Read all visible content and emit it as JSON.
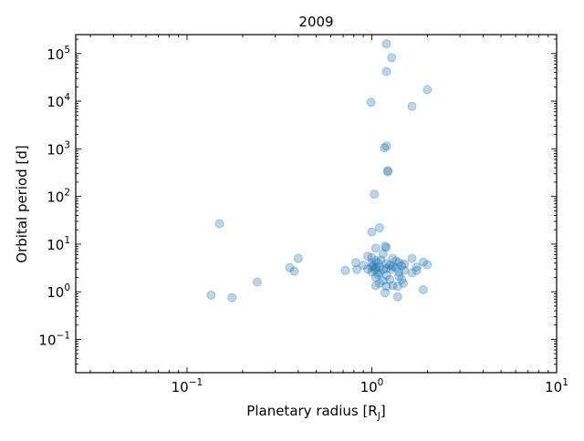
{
  "chart_data": {
    "type": "scatter",
    "title": "2009",
    "xlabel": "Planetary radius [R",
    "xlabel_sub": "J",
    "xlabel_end": "]",
    "ylabel": "Orbital period [d]",
    "xscale": "log",
    "yscale": "log",
    "xlim": [
      0.025,
      10
    ],
    "ylim": [
      0.02,
      250000
    ],
    "x_ticks": [
      {
        "base": "10",
        "exp": "−1",
        "value": 0.1
      },
      {
        "base": "10",
        "exp": "0",
        "value": 1
      },
      {
        "base": "10",
        "exp": "1",
        "value": 10
      }
    ],
    "y_ticks": [
      {
        "base": "10",
        "exp": "−1",
        "value": 0.1
      },
      {
        "base": "10",
        "exp": "0",
        "value": 1
      },
      {
        "base": "10",
        "exp": "1",
        "value": 10
      },
      {
        "base": "10",
        "exp": "2",
        "value": 100
      },
      {
        "base": "10",
        "exp": "3",
        "value": 1000
      },
      {
        "base": "10",
        "exp": "4",
        "value": 10000
      },
      {
        "base": "10",
        "exp": "5",
        "value": 100000
      }
    ],
    "grid": false,
    "marker_color": "#1f77b4",
    "marker_alpha": 0.3,
    "points": [
      {
        "x": 1.2,
        "y": 160000
      },
      {
        "x": 1.28,
        "y": 82000
      },
      {
        "x": 1.2,
        "y": 42000
      },
      {
        "x": 2.0,
        "y": 17500
      },
      {
        "x": 0.99,
        "y": 9500
      },
      {
        "x": 1.65,
        "y": 7800
      },
      {
        "x": 1.2,
        "y": 1150
      },
      {
        "x": 1.17,
        "y": 1050
      },
      {
        "x": 1.22,
        "y": 350
      },
      {
        "x": 1.22,
        "y": 330
      },
      {
        "x": 1.03,
        "y": 112
      },
      {
        "x": 0.15,
        "y": 27
      },
      {
        "x": 1.1,
        "y": 22
      },
      {
        "x": 1.0,
        "y": 18
      },
      {
        "x": 1.18,
        "y": 9
      },
      {
        "x": 1.2,
        "y": 8.5
      },
      {
        "x": 1.05,
        "y": 8.2
      },
      {
        "x": 1.15,
        "y": 6.2
      },
      {
        "x": 0.95,
        "y": 5.6
      },
      {
        "x": 1.0,
        "y": 5.2
      },
      {
        "x": 1.3,
        "y": 5.0
      },
      {
        "x": 1.65,
        "y": 5.0
      },
      {
        "x": 0.4,
        "y": 5.0
      },
      {
        "x": 1.05,
        "y": 4.5
      },
      {
        "x": 1.12,
        "y": 4.6
      },
      {
        "x": 1.35,
        "y": 4.4
      },
      {
        "x": 1.4,
        "y": 4.1
      },
      {
        "x": 1.9,
        "y": 4.2
      },
      {
        "x": 0.82,
        "y": 4.1
      },
      {
        "x": 1.0,
        "y": 4.0
      },
      {
        "x": 1.08,
        "y": 4.0
      },
      {
        "x": 1.2,
        "y": 3.9
      },
      {
        "x": 1.5,
        "y": 3.8
      },
      {
        "x": 2.0,
        "y": 3.7
      },
      {
        "x": 0.9,
        "y": 3.6
      },
      {
        "x": 1.02,
        "y": 3.5
      },
      {
        "x": 1.25,
        "y": 3.6
      },
      {
        "x": 1.3,
        "y": 3.4
      },
      {
        "x": 1.45,
        "y": 3.5
      },
      {
        "x": 1.0,
        "y": 3.3
      },
      {
        "x": 1.05,
        "y": 3.2
      },
      {
        "x": 1.1,
        "y": 3.3
      },
      {
        "x": 1.2,
        "y": 3.1
      },
      {
        "x": 1.35,
        "y": 3.2
      },
      {
        "x": 1.75,
        "y": 3.3
      },
      {
        "x": 0.36,
        "y": 3.2
      },
      {
        "x": 0.95,
        "y": 3.0
      },
      {
        "x": 1.04,
        "y": 2.9
      },
      {
        "x": 1.15,
        "y": 2.9
      },
      {
        "x": 1.27,
        "y": 3.0
      },
      {
        "x": 1.5,
        "y": 2.8
      },
      {
        "x": 1.75,
        "y": 2.8
      },
      {
        "x": 0.72,
        "y": 2.8
      },
      {
        "x": 0.83,
        "y": 2.9
      },
      {
        "x": 0.38,
        "y": 2.7
      },
      {
        "x": 1.0,
        "y": 2.6
      },
      {
        "x": 1.1,
        "y": 2.5
      },
      {
        "x": 1.4,
        "y": 2.6
      },
      {
        "x": 1.65,
        "y": 2.5
      },
      {
        "x": 1.08,
        "y": 2.3
      },
      {
        "x": 1.2,
        "y": 2.2
      },
      {
        "x": 1.4,
        "y": 2.1
      },
      {
        "x": 1.05,
        "y": 2.0
      },
      {
        "x": 1.25,
        "y": 1.8
      },
      {
        "x": 1.45,
        "y": 1.8
      },
      {
        "x": 1.15,
        "y": 1.7
      },
      {
        "x": 0.24,
        "y": 1.6
      },
      {
        "x": 1.1,
        "y": 1.5
      },
      {
        "x": 1.48,
        "y": 1.5
      },
      {
        "x": 1.05,
        "y": 1.35
      },
      {
        "x": 1.2,
        "y": 1.3
      },
      {
        "x": 1.3,
        "y": 1.35
      },
      {
        "x": 1.38,
        "y": 1.3
      },
      {
        "x": 1.9,
        "y": 1.1
      },
      {
        "x": 1.18,
        "y": 0.95
      },
      {
        "x": 0.135,
        "y": 0.85
      },
      {
        "x": 0.175,
        "y": 0.75
      },
      {
        "x": 1.38,
        "y": 0.78
      }
    ]
  }
}
